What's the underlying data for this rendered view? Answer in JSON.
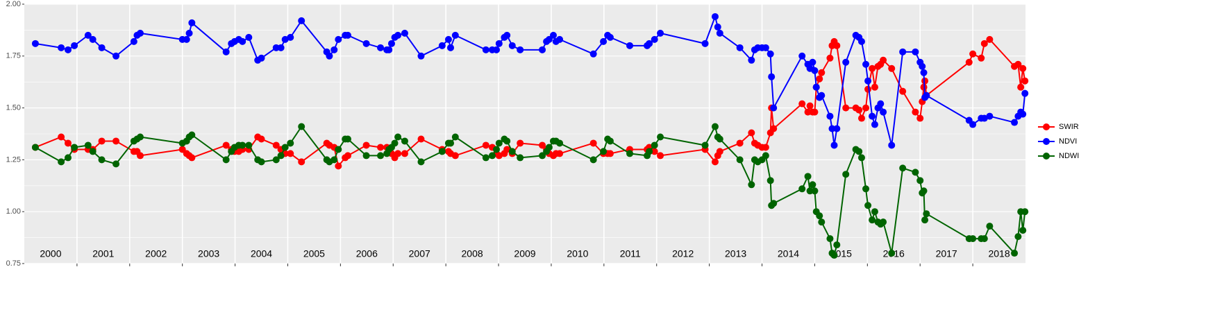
{
  "chart_data": {
    "type": "line",
    "xlim": [
      2000,
      2019
    ],
    "ylim": [
      0.75,
      2.0
    ],
    "yticks": [
      {
        "value": 0.75,
        "label": "0.75"
      },
      {
        "value": 1.0,
        "label": "1.00"
      },
      {
        "value": 1.25,
        "label": "1.25"
      },
      {
        "value": 1.5,
        "label": "1.50"
      },
      {
        "value": 1.75,
        "label": "1.75"
      },
      {
        "value": 2.0,
        "label": "2.00"
      }
    ],
    "xgrid": [
      2001,
      2002,
      2003,
      2004,
      2005,
      2006,
      2007,
      2008,
      2009,
      2010,
      2011,
      2012,
      2013,
      2014,
      2015,
      2016,
      2017,
      2018
    ],
    "year_labels": [
      {
        "value": 2000.5,
        "label": "2000"
      },
      {
        "value": 2001.5,
        "label": "2001"
      },
      {
        "value": 2002.5,
        "label": "2002"
      },
      {
        "value": 2003.5,
        "label": "2003"
      },
      {
        "value": 2004.5,
        "label": "2004"
      },
      {
        "value": 2005.5,
        "label": "2005"
      },
      {
        "value": 2006.5,
        "label": "2006"
      },
      {
        "value": 2007.5,
        "label": "2007"
      },
      {
        "value": 2008.5,
        "label": "2008"
      },
      {
        "value": 2009.5,
        "label": "2009"
      },
      {
        "value": 2010.5,
        "label": "2010"
      },
      {
        "value": 2011.5,
        "label": "2011"
      },
      {
        "value": 2012.5,
        "label": "2012"
      },
      {
        "value": 2013.5,
        "label": "2013"
      },
      {
        "value": 2014.5,
        "label": "2014"
      },
      {
        "value": 2015.5,
        "label": "2015"
      },
      {
        "value": 2016.5,
        "label": "2016"
      },
      {
        "value": 2017.5,
        "label": "2017"
      },
      {
        "value": 2018.5,
        "label": "2018"
      }
    ],
    "grid": true,
    "minor_grid": true,
    "legend": "right",
    "x": [
      2000.21,
      2000.7,
      2000.83,
      2000.95,
      2001.21,
      2001.3,
      2001.47,
      2001.74,
      2002.08,
      2002.14,
      2002.2,
      2003.0,
      2003.08,
      2003.13,
      2003.18,
      2003.83,
      2003.93,
      2003.99,
      2004.07,
      2004.14,
      2004.26,
      2004.43,
      2004.5,
      2004.78,
      2004.87,
      2004.95,
      2005.05,
      2005.26,
      2005.74,
      2005.79,
      2005.88,
      2005.96,
      2006.09,
      2006.14,
      2006.49,
      2006.76,
      2006.88,
      2006.92,
      2006.97,
      2007.03,
      2007.09,
      2007.22,
      2007.53,
      2007.93,
      2008.05,
      2008.09,
      2008.18,
      2008.76,
      2008.88,
      2008.96,
      2009.01,
      2009.11,
      2009.16,
      2009.26,
      2009.41,
      2009.83,
      2009.91,
      2009.96,
      2010.04,
      2010.09,
      2010.16,
      2010.8,
      2010.99,
      2011.07,
      2011.12,
      2011.49,
      2011.82,
      2011.86,
      2011.96,
      2012.07,
      2012.92,
      2013.11,
      2013.16,
      2013.2,
      2013.58,
      2013.8,
      2013.86,
      2013.92,
      2014.0,
      2014.07,
      2014.16,
      2014.18,
      2014.22,
      2014.76,
      2014.87,
      2014.91,
      2014.96,
      2015.0,
      2015.03,
      2015.09,
      2015.13,
      2015.29,
      2015.33,
      2015.37,
      2015.42,
      2015.59,
      2015.78,
      2015.84,
      2015.89,
      2015.97,
      2016.01,
      2016.09,
      2016.14,
      2016.2,
      2016.25,
      2016.3,
      2016.46,
      2016.67,
      2016.91,
      2017.0,
      2017.04,
      2017.07,
      2017.09,
      2017.12,
      2017.93,
      2018.0,
      2018.16,
      2018.22,
      2018.32,
      2018.79,
      2018.86,
      2018.91,
      2018.95,
      2018.99
    ],
    "series": [
      {
        "name": "SWIR",
        "color": "#ff0000",
        "values": [
          1.31,
          1.36,
          1.33,
          1.3,
          1.3,
          1.3,
          1.34,
          1.34,
          1.29,
          1.29,
          1.27,
          1.3,
          1.28,
          1.27,
          1.26,
          1.32,
          1.3,
          1.29,
          1.29,
          1.3,
          1.3,
          1.36,
          1.35,
          1.32,
          1.3,
          1.28,
          1.28,
          1.24,
          1.33,
          1.32,
          1.31,
          1.22,
          1.26,
          1.27,
          1.32,
          1.31,
          1.31,
          1.29,
          1.28,
          1.26,
          1.28,
          1.28,
          1.35,
          1.3,
          1.29,
          1.28,
          1.27,
          1.32,
          1.31,
          1.28,
          1.27,
          1.28,
          1.3,
          1.28,
          1.33,
          1.32,
          1.3,
          1.28,
          1.27,
          1.28,
          1.28,
          1.33,
          1.28,
          1.28,
          1.28,
          1.3,
          1.3,
          1.31,
          1.29,
          1.27,
          1.3,
          1.24,
          1.27,
          1.29,
          1.33,
          1.38,
          1.33,
          1.32,
          1.31,
          1.31,
          1.38,
          1.5,
          1.4,
          1.52,
          1.48,
          1.51,
          1.48,
          1.48,
          1.6,
          1.64,
          1.67,
          1.74,
          1.8,
          1.82,
          1.8,
          1.5,
          1.5,
          1.49,
          1.45,
          1.5,
          1.59,
          1.69,
          1.6,
          1.7,
          1.71,
          1.73,
          1.69,
          1.58,
          1.48,
          1.45,
          1.53,
          1.6,
          1.63,
          1.56,
          1.72,
          1.76,
          1.74,
          1.81,
          1.83,
          1.7,
          1.71,
          1.6,
          1.69,
          1.63
        ]
      },
      {
        "name": "NDVI",
        "color": "#0000ff",
        "values": [
          1.81,
          1.79,
          1.78,
          1.8,
          1.85,
          1.83,
          1.79,
          1.75,
          1.82,
          1.85,
          1.86,
          1.83,
          1.83,
          1.86,
          1.91,
          1.77,
          1.81,
          1.82,
          1.83,
          1.82,
          1.84,
          1.73,
          1.74,
          1.79,
          1.79,
          1.83,
          1.84,
          1.92,
          1.77,
          1.75,
          1.78,
          1.83,
          1.85,
          1.85,
          1.81,
          1.79,
          1.78,
          1.78,
          1.81,
          1.84,
          1.85,
          1.86,
          1.75,
          1.8,
          1.83,
          1.79,
          1.85,
          1.78,
          1.78,
          1.78,
          1.81,
          1.84,
          1.85,
          1.8,
          1.78,
          1.78,
          1.82,
          1.83,
          1.85,
          1.82,
          1.83,
          1.76,
          1.82,
          1.85,
          1.84,
          1.8,
          1.8,
          1.81,
          1.83,
          1.86,
          1.81,
          1.94,
          1.89,
          1.86,
          1.79,
          1.73,
          1.78,
          1.79,
          1.79,
          1.79,
          1.76,
          1.65,
          1.5,
          1.75,
          1.71,
          1.69,
          1.72,
          1.68,
          1.6,
          1.55,
          1.56,
          1.46,
          1.4,
          1.32,
          1.4,
          1.72,
          1.85,
          1.84,
          1.82,
          1.71,
          1.63,
          1.46,
          1.42,
          1.5,
          1.52,
          1.48,
          1.32,
          1.77,
          1.77,
          1.72,
          1.7,
          1.67,
          1.55,
          1.56,
          1.44,
          1.42,
          1.45,
          1.45,
          1.46,
          1.43,
          1.46,
          1.48,
          1.47,
          1.57
        ]
      },
      {
        "name": "NDWI",
        "color": "#006400",
        "values": [
          1.31,
          1.24,
          1.26,
          1.31,
          1.32,
          1.29,
          1.25,
          1.23,
          1.34,
          1.35,
          1.36,
          1.33,
          1.34,
          1.36,
          1.37,
          1.25,
          1.29,
          1.31,
          1.32,
          1.32,
          1.32,
          1.25,
          1.24,
          1.25,
          1.27,
          1.31,
          1.33,
          1.41,
          1.25,
          1.24,
          1.25,
          1.3,
          1.35,
          1.35,
          1.27,
          1.27,
          1.28,
          1.3,
          1.31,
          1.33,
          1.36,
          1.34,
          1.24,
          1.29,
          1.33,
          1.33,
          1.36,
          1.26,
          1.27,
          1.3,
          1.33,
          1.35,
          1.34,
          1.29,
          1.26,
          1.27,
          1.29,
          1.31,
          1.34,
          1.34,
          1.33,
          1.25,
          1.29,
          1.35,
          1.34,
          1.28,
          1.27,
          1.29,
          1.32,
          1.36,
          1.32,
          1.41,
          1.36,
          1.35,
          1.25,
          1.13,
          1.25,
          1.24,
          1.25,
          1.27,
          1.15,
          1.03,
          1.04,
          1.11,
          1.17,
          1.1,
          1.13,
          1.1,
          1.0,
          0.98,
          0.95,
          0.87,
          0.8,
          0.79,
          0.84,
          1.18,
          1.3,
          1.29,
          1.26,
          1.11,
          1.03,
          0.96,
          1.0,
          0.95,
          0.94,
          0.95,
          0.8,
          1.21,
          1.19,
          1.15,
          1.09,
          1.1,
          0.96,
          0.99,
          0.87,
          0.87,
          0.87,
          0.87,
          0.93,
          0.8,
          0.88,
          1.0,
          0.91,
          1.0
        ]
      }
    ]
  }
}
